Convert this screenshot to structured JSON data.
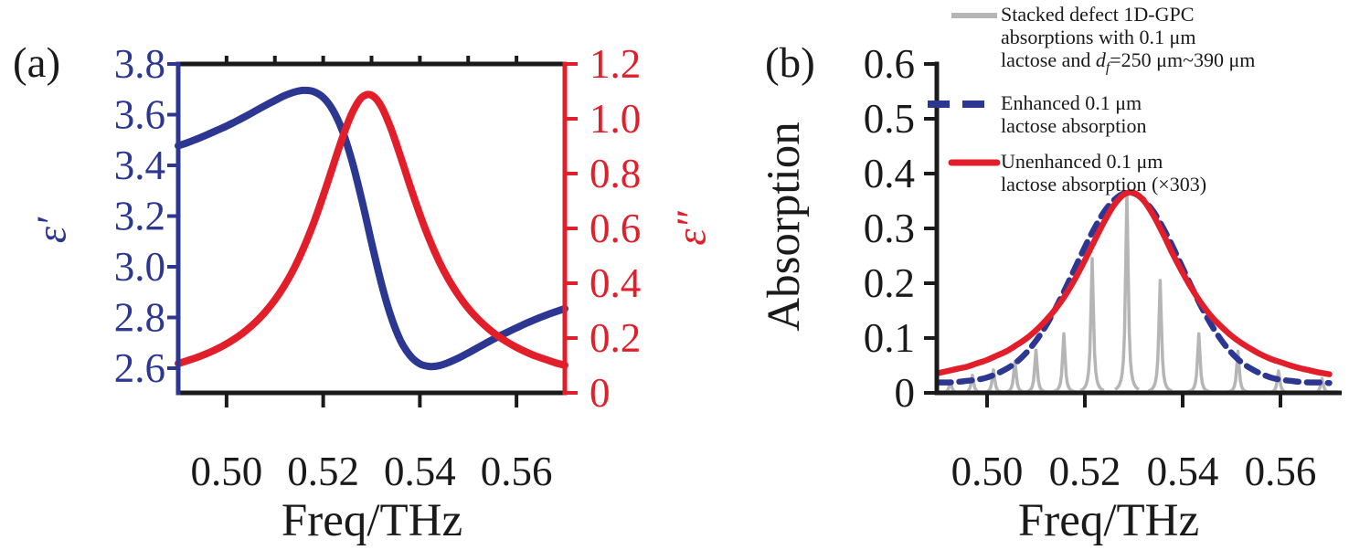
{
  "panel_a": {
    "tag": "(a)",
    "x_axis": {
      "label": "Freq/THz",
      "tick_labels": [
        "0.50",
        "0.52",
        "0.54",
        "0.56"
      ]
    },
    "left_axis": {
      "label": "ε′",
      "color": "#2c3792",
      "tick_labels": [
        "3.8",
        "3.6",
        "3.4",
        "3.2",
        "3.0",
        "2.8",
        "2.6"
      ]
    },
    "right_axis": {
      "label": "ε″",
      "color": "#e21e2a",
      "tick_labels": [
        "1.2",
        "1.0",
        "0.8",
        "0.6",
        "0.4",
        "0.2",
        "0"
      ]
    }
  },
  "panel_b": {
    "tag": "(b)",
    "x_axis": {
      "label": "Freq/THz",
      "tick_labels": [
        "0.50",
        "0.52",
        "0.54",
        "0.56"
      ]
    },
    "y_axis": {
      "label": "Absorption",
      "tick_labels": [
        "0.6",
        "0.5",
        "0.4",
        "0.3",
        "0.2",
        "0.1",
        "0"
      ]
    },
    "legend": {
      "items": [
        {
          "swatch": "gray-solid-line",
          "color": "#b5b5b5",
          "lines": [
            "Stacked defect 1D-GPC",
            "absorptions with 0.1 μm"
          ],
          "line3": {
            "pre": "lactose and ",
            "var": "d",
            "sub": "f",
            "post": "=250 μm~390 μm"
          }
        },
        {
          "swatch": "blue-dashed-line",
          "color": "#2c3792",
          "lines": [
            "Enhanced 0.1 μm",
            "lactose absorption"
          ]
        },
        {
          "swatch": "red-solid-line",
          "color": "#e21e2a",
          "lines": [
            "Unenhanced 0.1 μm",
            "lactose absorption (×303)"
          ]
        }
      ]
    }
  },
  "chart_data": [
    {
      "type": "line",
      "panel": "a",
      "xlabel": "Freq/THz",
      "x_start": 0.49,
      "x_step": 0.002,
      "xlim": [
        0.49,
        0.57
      ],
      "xticks": [
        0.5,
        0.52,
        0.54,
        0.56
      ],
      "ylim_left": [
        2.5,
        3.8
      ],
      "yticks_left": [
        3.8,
        3.6,
        3.4,
        3.2,
        3.0,
        2.8,
        2.6
      ],
      "ylim_right": [
        0,
        1.2
      ],
      "yticks_right": [
        1.2,
        1.0,
        0.8,
        0.6,
        0.4,
        0.2,
        0
      ],
      "series": [
        {
          "name": "epsilon_prime",
          "axis": "left",
          "color": "#2c3792",
          "style": "solid",
          "values": [
            3.477,
            3.49,
            3.505,
            3.521,
            3.538,
            3.555,
            3.574,
            3.594,
            3.615,
            3.636,
            3.656,
            3.675,
            3.689,
            3.696,
            3.691,
            3.668,
            3.618,
            3.535,
            3.414,
            3.263,
            3.096,
            2.937,
            2.805,
            2.709,
            2.649,
            2.617,
            2.607,
            2.61,
            2.623,
            2.64,
            2.66,
            2.681,
            2.702,
            2.722,
            2.741,
            2.759,
            2.777,
            2.793,
            2.808,
            2.822,
            2.835
          ]
        },
        {
          "name": "epsilon_double_prime",
          "axis": "right",
          "color": "#e21e2a",
          "style": "solid",
          "values": [
            0.107,
            0.118,
            0.13,
            0.144,
            0.16,
            0.179,
            0.201,
            0.227,
            0.258,
            0.295,
            0.339,
            0.392,
            0.455,
            0.531,
            0.619,
            0.719,
            0.826,
            0.932,
            1.022,
            1.078,
            1.086,
            1.046,
            0.965,
            0.863,
            0.754,
            0.651,
            0.559,
            0.479,
            0.412,
            0.356,
            0.309,
            0.27,
            0.237,
            0.209,
            0.186,
            0.166,
            0.149,
            0.134,
            0.122,
            0.11,
            0.101
          ]
        }
      ]
    },
    {
      "type": "line",
      "panel": "b",
      "xlabel": "Freq/THz",
      "ylabel": "Absorption",
      "x_start": 0.49,
      "x_step": 0.002,
      "xlim": [
        0.4897,
        0.573
      ],
      "xticks": [
        0.5,
        0.52,
        0.54,
        0.56
      ],
      "ylim": [
        0,
        0.6
      ],
      "yticks": [
        0.6,
        0.5,
        0.4,
        0.3,
        0.2,
        0.1,
        0
      ],
      "series": [
        {
          "name": "enhanced_lactose_absorption",
          "color": "#2c3792",
          "style": "dashed",
          "values": [
            0.019,
            0.019,
            0.02,
            0.022,
            0.024,
            0.028,
            0.035,
            0.044,
            0.056,
            0.073,
            0.095,
            0.122,
            0.154,
            0.19,
            0.228,
            0.266,
            0.301,
            0.331,
            0.352,
            0.364,
            0.364,
            0.352,
            0.331,
            0.301,
            0.266,
            0.228,
            0.19,
            0.154,
            0.122,
            0.095,
            0.073,
            0.056,
            0.044,
            0.035,
            0.028,
            0.024,
            0.022,
            0.02,
            0.019,
            0.019,
            0.018
          ]
        },
        {
          "name": "unenhanced_lactose_absorption_x303",
          "color": "#e21e2a",
          "style": "solid",
          "values": [
            0.036,
            0.04,
            0.044,
            0.048,
            0.054,
            0.06,
            0.068,
            0.076,
            0.087,
            0.099,
            0.114,
            0.132,
            0.153,
            0.178,
            0.208,
            0.242,
            0.278,
            0.313,
            0.343,
            0.362,
            0.365,
            0.351,
            0.324,
            0.29,
            0.253,
            0.219,
            0.188,
            0.161,
            0.138,
            0.12,
            0.104,
            0.091,
            0.08,
            0.07,
            0.062,
            0.056,
            0.05,
            0.045,
            0.041,
            0.037,
            0.034
          ]
        }
      ],
      "defect_mode_spikes": {
        "name": "stacked_defect_1d_gpc_absorptions",
        "color": "#b5b5b5",
        "points": [
          [
            0.4925,
            0.02
          ],
          [
            0.497,
            0.032
          ],
          [
            0.5013,
            0.042
          ],
          [
            0.5057,
            0.058
          ],
          [
            0.51,
            0.078
          ],
          [
            0.5157,
            0.108
          ],
          [
            0.5215,
            0.245
          ],
          [
            0.5286,
            0.366
          ],
          [
            0.5354,
            0.205
          ],
          [
            0.5433,
            0.108
          ],
          [
            0.5513,
            0.076
          ],
          [
            0.5596,
            0.04
          ],
          [
            0.5685,
            0.026
          ]
        ]
      }
    }
  ]
}
